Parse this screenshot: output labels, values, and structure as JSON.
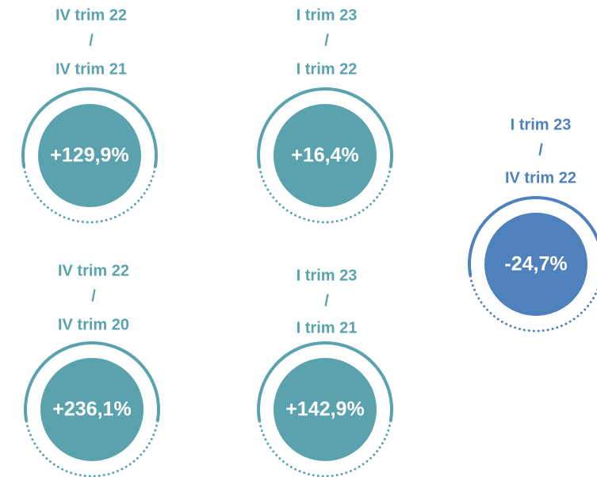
{
  "items": [
    {
      "lines": [
        "IV trim 22",
        "/",
        "IV trim 21"
      ],
      "value": "+129,9%",
      "color": "#5aa3ae"
    },
    {
      "lines": [
        "I trim 23",
        "/",
        "I trim 22"
      ],
      "value": "+16,4%",
      "color": "#5aa3ae"
    },
    {
      "lines": [
        "I trim 23",
        "/",
        "IV trim 22"
      ],
      "value": "-24,7%",
      "color": "#4f81bd"
    },
    {
      "lines": [
        "IV trim 22",
        "/",
        "IV trim 20"
      ],
      "value": "+236,1%",
      "color": "#5aa3ae"
    },
    {
      "lines": [
        "I trim 23",
        "/",
        "I trim 21"
      ],
      "value": "+142,9%",
      "color": "#5aa3ae"
    }
  ]
}
